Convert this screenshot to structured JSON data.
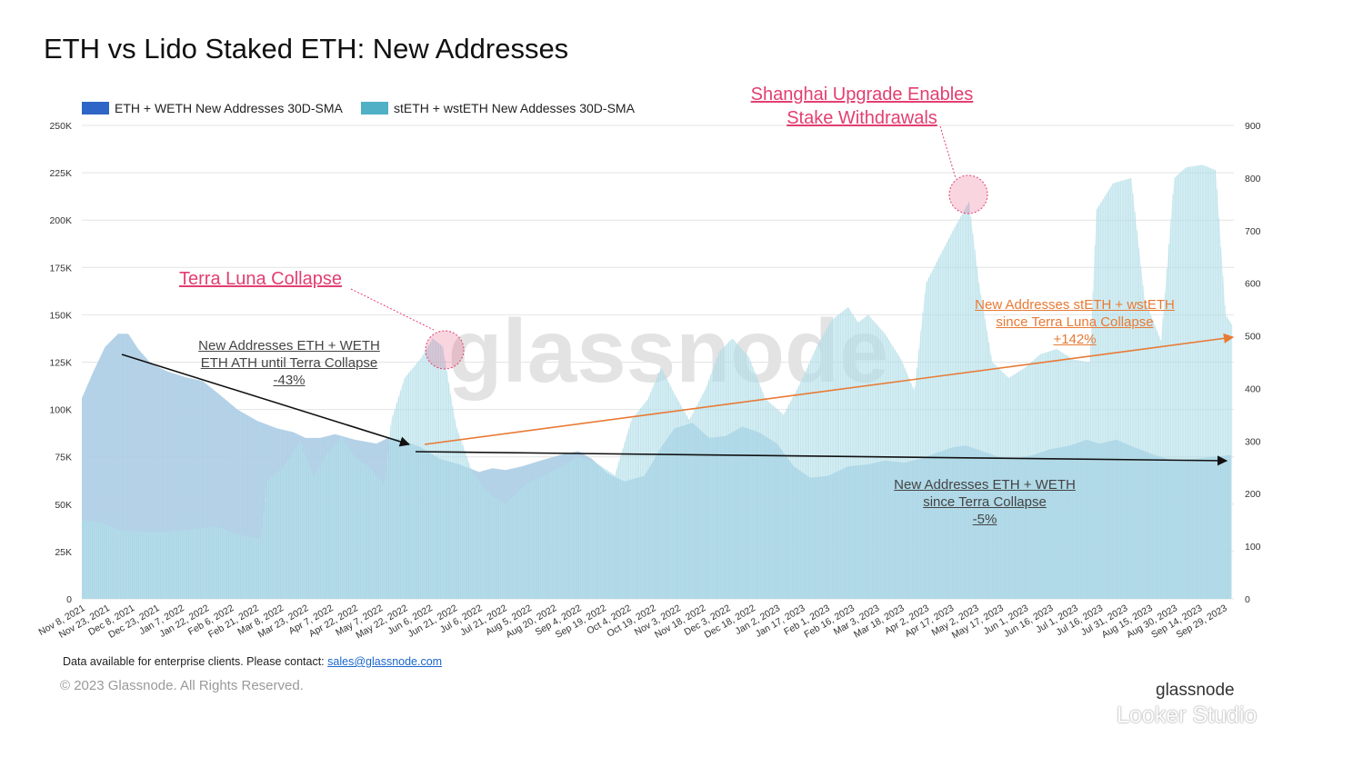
{
  "title": "ETH vs Lido Staked ETH: New Addresses",
  "legend": [
    {
      "label": "ETH + WETH New Addresses 30D-SMA",
      "color": "#2f65c6"
    },
    {
      "label": "stETH + wstETH New Addesses 30D-SMA",
      "color": "#4fb0c6"
    }
  ],
  "colors": {
    "eth_fill": "#a9cbe3",
    "steth_fill": "#bfe3ec",
    "annotation_red": "#e33e72",
    "annotation_orange": "#e87a34",
    "annotation_black": "#111111",
    "grid": "#e4e4e4"
  },
  "watermark": "glassnode",
  "annotations": {
    "terra": {
      "title": "Terra Luna Collapse"
    },
    "shanghai": {
      "line1": "Shanghai Upgrade Enables",
      "line2": "Stake Withdrawals"
    },
    "eth_ath": {
      "line1": "New Addresses ETH + WETH",
      "line2": "ETH ATH until Terra Collapse",
      "value": "-43%"
    },
    "steth_since": {
      "line1": "New Addresses stETH + wstETH",
      "line2": "since Terra Luna Collapse",
      "value": "+142%"
    },
    "eth_since": {
      "line1": "New Addresses ETH + WETH",
      "line2": "since Terra Collapse",
      "value": "-5%"
    }
  },
  "footer": {
    "note_prefix": "Data available for enterprise clients. Please contact: ",
    "email": "sales@glassnode.com",
    "copyright": "© 2023 Glassnode. All Rights Reserved.",
    "brand": "glassnode",
    "tool": "Looker Studio"
  },
  "chart_data": {
    "type": "area",
    "title": "ETH vs Lido Staked ETH: New Addresses",
    "x_ticks": [
      "Nov 8, 2021",
      "Nov 23, 2021",
      "Dec 8, 2021",
      "Dec 23, 2021",
      "Jan 7, 2022",
      "Jan 22, 2022",
      "Feb 6, 2022",
      "Feb 21, 2022",
      "Mar 8, 2022",
      "Mar 23, 2022",
      "Apr 7, 2022",
      "Apr 22, 2022",
      "May 7, 2022",
      "May 22, 2022",
      "Jun 6, 2022",
      "Jun 21, 2022",
      "Jul 6, 2022",
      "Jul 21, 2022",
      "Aug 5, 2022",
      "Aug 20, 2022",
      "Sep 4, 2022",
      "Sep 19, 2022",
      "Oct 4, 2022",
      "Oct 19, 2022",
      "Nov 3, 2022",
      "Nov 18, 2022",
      "Dec 3, 2022",
      "Dec 18, 2022",
      "Jan 2, 2023",
      "Jan 17, 2023",
      "Feb 1, 2023",
      "Feb 16, 2023",
      "Mar 3, 2023",
      "Mar 18, 2023",
      "Apr 2, 2023",
      "Apr 17, 2023",
      "May 2, 2023",
      "May 17, 2023",
      "Jun 1, 2023",
      "Jun 16, 2023",
      "Jul 1, 2023",
      "Jul 16, 2023",
      "Jul 31, 2023",
      "Aug 15, 2023",
      "Aug 30, 2023",
      "Sep 14, 2023",
      "Sep 29, 2023"
    ],
    "y_left": {
      "ticks": [
        "0",
        "25K",
        "50K",
        "75K",
        "100K",
        "125K",
        "150K",
        "175K",
        "200K",
        "225K",
        "250K"
      ],
      "range": [
        0,
        250000
      ]
    },
    "y_right": {
      "ticks": [
        "0",
        "100",
        "200",
        "300",
        "400",
        "500",
        "600",
        "700",
        "800",
        "900"
      ],
      "range": [
        0,
        900
      ]
    },
    "grid": true,
    "legend_position": "top-left",
    "series": [
      {
        "name": "ETH + WETH New Addresses 30D-SMA",
        "axis": "left",
        "points": [
          [
            "2021-11-08",
            106000
          ],
          [
            "2021-11-15",
            120000
          ],
          [
            "2021-11-22",
            133000
          ],
          [
            "2021-11-30",
            140000
          ],
          [
            "2021-12-06",
            140000
          ],
          [
            "2021-12-12",
            132000
          ],
          [
            "2021-12-20",
            124000
          ],
          [
            "2021-12-30",
            120000
          ],
          [
            "2022-01-10",
            117000
          ],
          [
            "2022-01-20",
            115000
          ],
          [
            "2022-01-30",
            108000
          ],
          [
            "2022-02-10",
            100000
          ],
          [
            "2022-02-22",
            94000
          ],
          [
            "2022-03-06",
            90000
          ],
          [
            "2022-03-16",
            88000
          ],
          [
            "2022-03-23",
            85000
          ],
          [
            "2022-04-01",
            85000
          ],
          [
            "2022-04-10",
            87000
          ],
          [
            "2022-04-22",
            84000
          ],
          [
            "2022-05-05",
            82000
          ],
          [
            "2022-05-12",
            85000
          ],
          [
            "2022-05-20",
            84000
          ],
          [
            "2022-06-01",
            80000
          ],
          [
            "2022-06-12",
            74000
          ],
          [
            "2022-06-24",
            71000
          ],
          [
            "2022-07-06",
            67000
          ],
          [
            "2022-07-14",
            69000
          ],
          [
            "2022-07-22",
            68000
          ],
          [
            "2022-08-01",
            70000
          ],
          [
            "2022-08-12",
            73000
          ],
          [
            "2022-08-24",
            76000
          ],
          [
            "2022-09-04",
            78000
          ],
          [
            "2022-09-12",
            74000
          ],
          [
            "2022-09-22",
            66000
          ],
          [
            "2022-10-02",
            62000
          ],
          [
            "2022-10-14",
            65000
          ],
          [
            "2022-10-24",
            80000
          ],
          [
            "2022-11-01",
            90000
          ],
          [
            "2022-11-12",
            93000
          ],
          [
            "2022-11-22",
            85000
          ],
          [
            "2022-12-02",
            86000
          ],
          [
            "2022-12-12",
            91000
          ],
          [
            "2022-12-22",
            88000
          ],
          [
            "2023-01-02",
            82000
          ],
          [
            "2023-01-12",
            70000
          ],
          [
            "2023-01-22",
            64000
          ],
          [
            "2023-02-02",
            65000
          ],
          [
            "2023-02-14",
            70000
          ],
          [
            "2023-02-26",
            71000
          ],
          [
            "2023-03-08",
            73000
          ],
          [
            "2023-03-20",
            72000
          ],
          [
            "2023-03-30",
            74000
          ],
          [
            "2023-04-08",
            77000
          ],
          [
            "2023-04-18",
            80000
          ],
          [
            "2023-04-26",
            81000
          ],
          [
            "2023-05-06",
            78000
          ],
          [
            "2023-05-16",
            75000
          ],
          [
            "2023-05-26",
            74000
          ],
          [
            "2023-06-06",
            76000
          ],
          [
            "2023-06-16",
            79000
          ],
          [
            "2023-06-28",
            81000
          ],
          [
            "2023-07-08",
            84000
          ],
          [
            "2023-07-16",
            82000
          ],
          [
            "2023-07-26",
            84000
          ],
          [
            "2023-08-06",
            80000
          ],
          [
            "2023-08-18",
            76000
          ],
          [
            "2023-08-30",
            73000
          ],
          [
            "2023-09-12",
            74000
          ],
          [
            "2023-09-22",
            75000
          ],
          [
            "2023-10-03",
            76000
          ]
        ]
      },
      {
        "name": "stETH + wstETH New Addesses 30D-SMA",
        "axis": "right",
        "points": [
          [
            "2021-11-08",
            150
          ],
          [
            "2021-11-20",
            145
          ],
          [
            "2021-12-01",
            130
          ],
          [
            "2021-12-15",
            128
          ],
          [
            "2021-12-30",
            128
          ],
          [
            "2022-01-15",
            133
          ],
          [
            "2022-01-28",
            138
          ],
          [
            "2022-02-08",
            125
          ],
          [
            "2022-02-18",
            118
          ],
          [
            "2022-02-24",
            115
          ],
          [
            "2022-02-28",
            225
          ],
          [
            "2022-03-10",
            250
          ],
          [
            "2022-03-20",
            300
          ],
          [
            "2022-03-28",
            232
          ],
          [
            "2022-04-06",
            280
          ],
          [
            "2022-04-14",
            308
          ],
          [
            "2022-04-22",
            270
          ],
          [
            "2022-05-01",
            250
          ],
          [
            "2022-05-10",
            215
          ],
          [
            "2022-05-14",
            340
          ],
          [
            "2022-05-22",
            420
          ],
          [
            "2022-06-01",
            458
          ],
          [
            "2022-06-08",
            495
          ],
          [
            "2022-06-14",
            480
          ],
          [
            "2022-06-22",
            330
          ],
          [
            "2022-07-02",
            240
          ],
          [
            "2022-07-12",
            200
          ],
          [
            "2022-07-22",
            180
          ],
          [
            "2022-08-04",
            220
          ],
          [
            "2022-08-14",
            235
          ],
          [
            "2022-08-24",
            250
          ],
          [
            "2022-09-04",
            270
          ],
          [
            "2022-09-14",
            260
          ],
          [
            "2022-09-26",
            235
          ],
          [
            "2022-10-06",
            340
          ],
          [
            "2022-10-16",
            380
          ],
          [
            "2022-10-24",
            440
          ],
          [
            "2022-11-01",
            390
          ],
          [
            "2022-11-10",
            340
          ],
          [
            "2022-11-20",
            400
          ],
          [
            "2022-11-28",
            470
          ],
          [
            "2022-12-06",
            495
          ],
          [
            "2022-12-16",
            460
          ],
          [
            "2022-12-26",
            380
          ],
          [
            "2023-01-06",
            350
          ],
          [
            "2023-01-16",
            410
          ],
          [
            "2023-01-26",
            480
          ],
          [
            "2023-02-04",
            530
          ],
          [
            "2023-02-14",
            555
          ],
          [
            "2023-02-20",
            525
          ],
          [
            "2023-02-26",
            540
          ],
          [
            "2023-03-08",
            505
          ],
          [
            "2023-03-18",
            455
          ],
          [
            "2023-03-26",
            395
          ],
          [
            "2023-04-02",
            600
          ],
          [
            "2023-04-10",
            650
          ],
          [
            "2023-04-20",
            710
          ],
          [
            "2023-04-28",
            755
          ],
          [
            "2023-05-04",
            600
          ],
          [
            "2023-05-12",
            450
          ],
          [
            "2023-05-22",
            420
          ],
          [
            "2023-06-01",
            440
          ],
          [
            "2023-06-10",
            465
          ],
          [
            "2023-06-20",
            475
          ],
          [
            "2023-06-30",
            455
          ],
          [
            "2023-07-10",
            450
          ],
          [
            "2023-07-14",
            740
          ],
          [
            "2023-07-24",
            790
          ],
          [
            "2023-08-04",
            800
          ],
          [
            "2023-08-12",
            570
          ],
          [
            "2023-08-22",
            490
          ],
          [
            "2023-08-30",
            800
          ],
          [
            "2023-09-06",
            820
          ],
          [
            "2023-09-16",
            825
          ],
          [
            "2023-09-24",
            815
          ],
          [
            "2023-09-30",
            540
          ],
          [
            "2023-10-04",
            520
          ]
        ]
      }
    ]
  }
}
